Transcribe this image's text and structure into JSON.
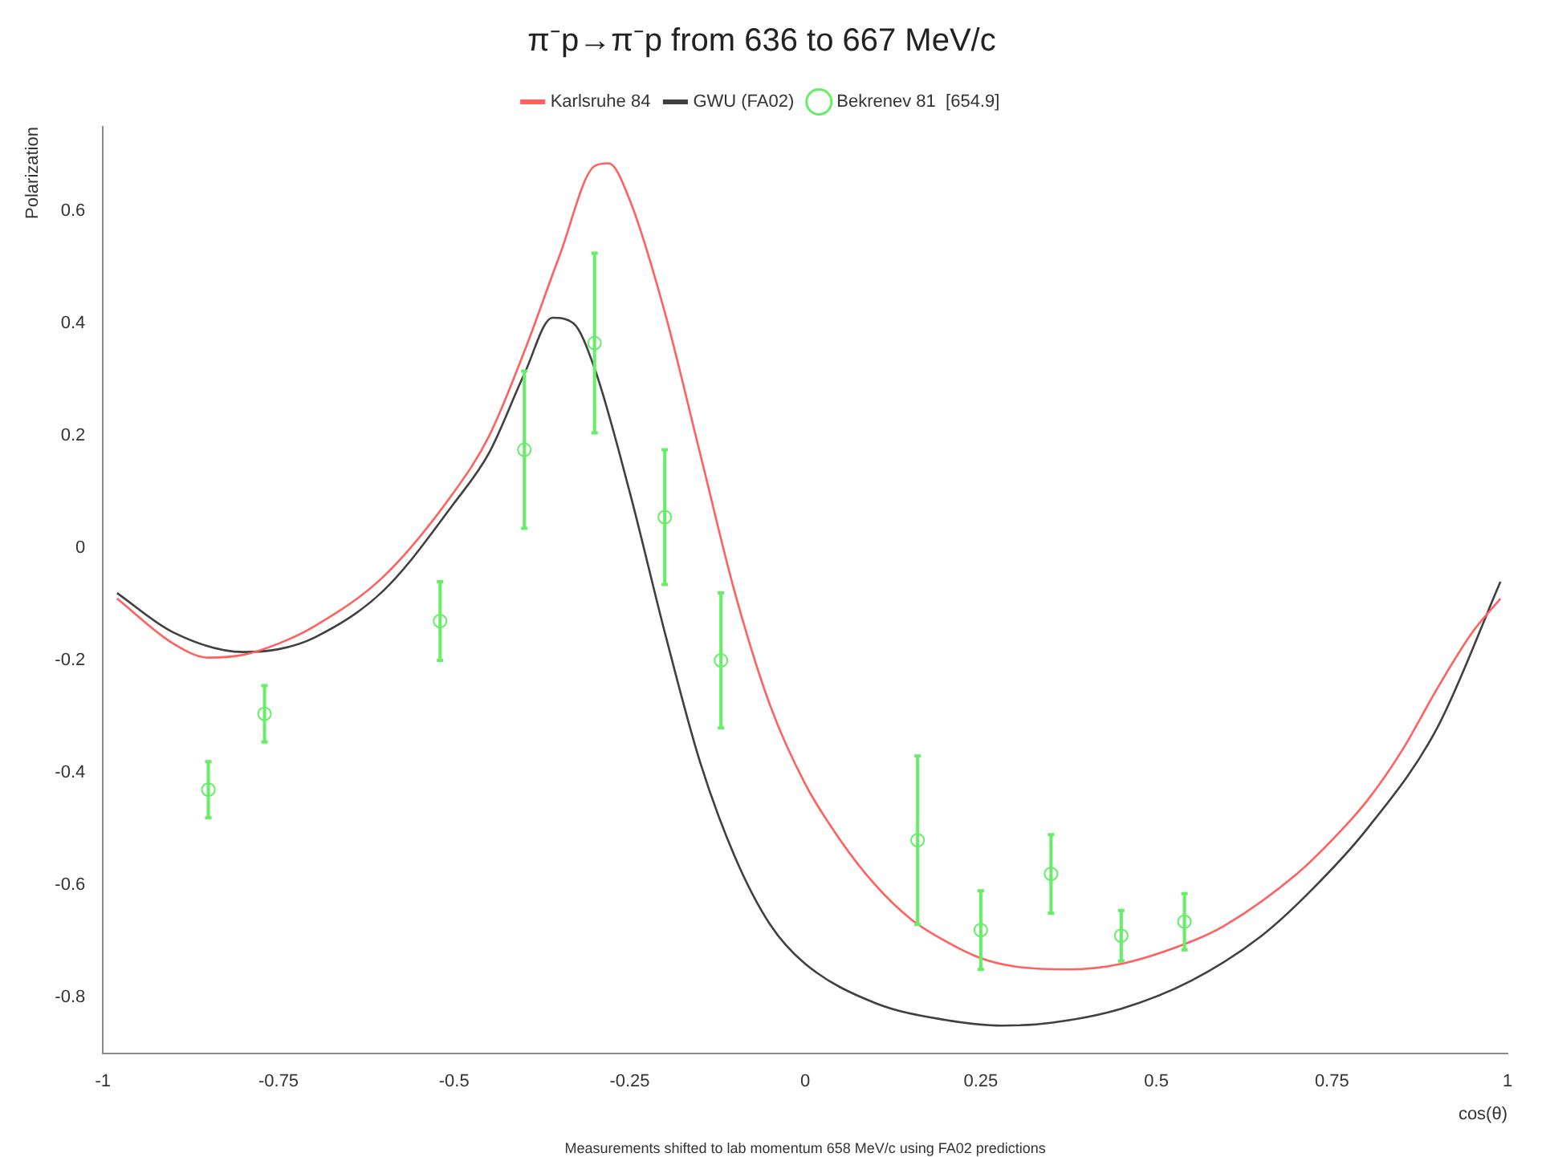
{
  "chart_data": {
    "type": "line",
    "title": "π⁻p→π⁻p from 636 to 667 MeV/c",
    "xlabel": "cos(θ)",
    "ylabel": "Polarization",
    "annotations": [
      "Measurements shifted to lab momentum 658 MeV/c using FA02 predictions"
    ],
    "xlim": [
      -1,
      1
    ],
    "xticks": [
      -1,
      -0.75,
      -0.5,
      -0.25,
      0,
      0.25,
      0.5,
      0.75,
      1
    ],
    "ylim": [
      -0.9,
      0.75
    ],
    "yticks": [
      -0.8,
      -0.6,
      -0.4,
      -0.2,
      0,
      0.2,
      0.4,
      0.6
    ],
    "grid": false,
    "legend": "top",
    "series": [
      {
        "name": "Karlsruhe 84",
        "color": "#ff6060",
        "marker": "none",
        "line_style": "solid",
        "x": [
          -0.98,
          -0.9,
          -0.85,
          -0.8,
          -0.75,
          -0.7,
          -0.6,
          -0.5,
          -0.45,
          -0.4,
          -0.35,
          -0.3,
          -0.28,
          -0.25,
          -0.2,
          -0.15,
          -0.1,
          -0.05,
          0,
          0.05,
          0.1,
          0.15,
          0.2,
          0.25,
          0.3,
          0.375,
          0.45,
          0.55,
          0.6,
          0.7,
          0.75,
          0.8,
          0.85,
          0.9,
          0.95,
          0.99
        ],
        "values": [
          -0.09,
          -0.17,
          -0.195,
          -0.19,
          -0.17,
          -0.14,
          -0.05,
          0.1,
          0.2,
          0.35,
          0.52,
          0.68,
          0.685,
          0.62,
          0.42,
          0.17,
          -0.08,
          -0.28,
          -0.42,
          -0.52,
          -0.6,
          -0.66,
          -0.7,
          -0.73,
          -0.745,
          -0.75,
          -0.74,
          -0.7,
          -0.67,
          -0.58,
          -0.52,
          -0.45,
          -0.36,
          -0.25,
          -0.15,
          -0.09
        ]
      },
      {
        "name": "GWU (FA02)",
        "color": "#404040",
        "marker": "none",
        "line_style": "solid",
        "x": [
          -0.98,
          -0.9,
          -0.8,
          -0.75,
          -0.7,
          -0.6,
          -0.5,
          -0.45,
          -0.4,
          -0.36,
          -0.33,
          -0.3,
          -0.25,
          -0.2,
          -0.15,
          -0.1,
          -0.05,
          0,
          0.1,
          0.2,
          0.28,
          0.35,
          0.45,
          0.55,
          0.65,
          0.72,
          0.8,
          0.9,
          0.99
        ],
        "values": [
          -0.08,
          -0.15,
          -0.185,
          -0.18,
          -0.16,
          -0.075,
          0.08,
          0.17,
          0.31,
          0.41,
          0.4,
          0.32,
          0.1,
          -0.15,
          -0.38,
          -0.55,
          -0.67,
          -0.74,
          -0.81,
          -0.84,
          -0.85,
          -0.845,
          -0.82,
          -0.77,
          -0.69,
          -0.61,
          -0.5,
          -0.32,
          -0.06
        ]
      },
      {
        "name": "Bekrenev 81  [654.9]",
        "type": "scatter",
        "color": "#66ee66",
        "marker": "circle",
        "x": [
          -0.85,
          -0.77,
          -0.52,
          -0.4,
          -0.3,
          -0.2,
          -0.12,
          0.16,
          0.25,
          0.35,
          0.45,
          0.54
        ],
        "values": [
          -0.43,
          -0.295,
          -0.13,
          0.175,
          0.365,
          0.055,
          -0.2,
          -0.52,
          -0.68,
          -0.58,
          -0.69,
          -0.665
        ],
        "errors": [
          0.05,
          0.05,
          0.07,
          0.14,
          0.16,
          0.12,
          0.12,
          0.15,
          0.07,
          0.07,
          0.045,
          0.05
        ]
      }
    ]
  }
}
